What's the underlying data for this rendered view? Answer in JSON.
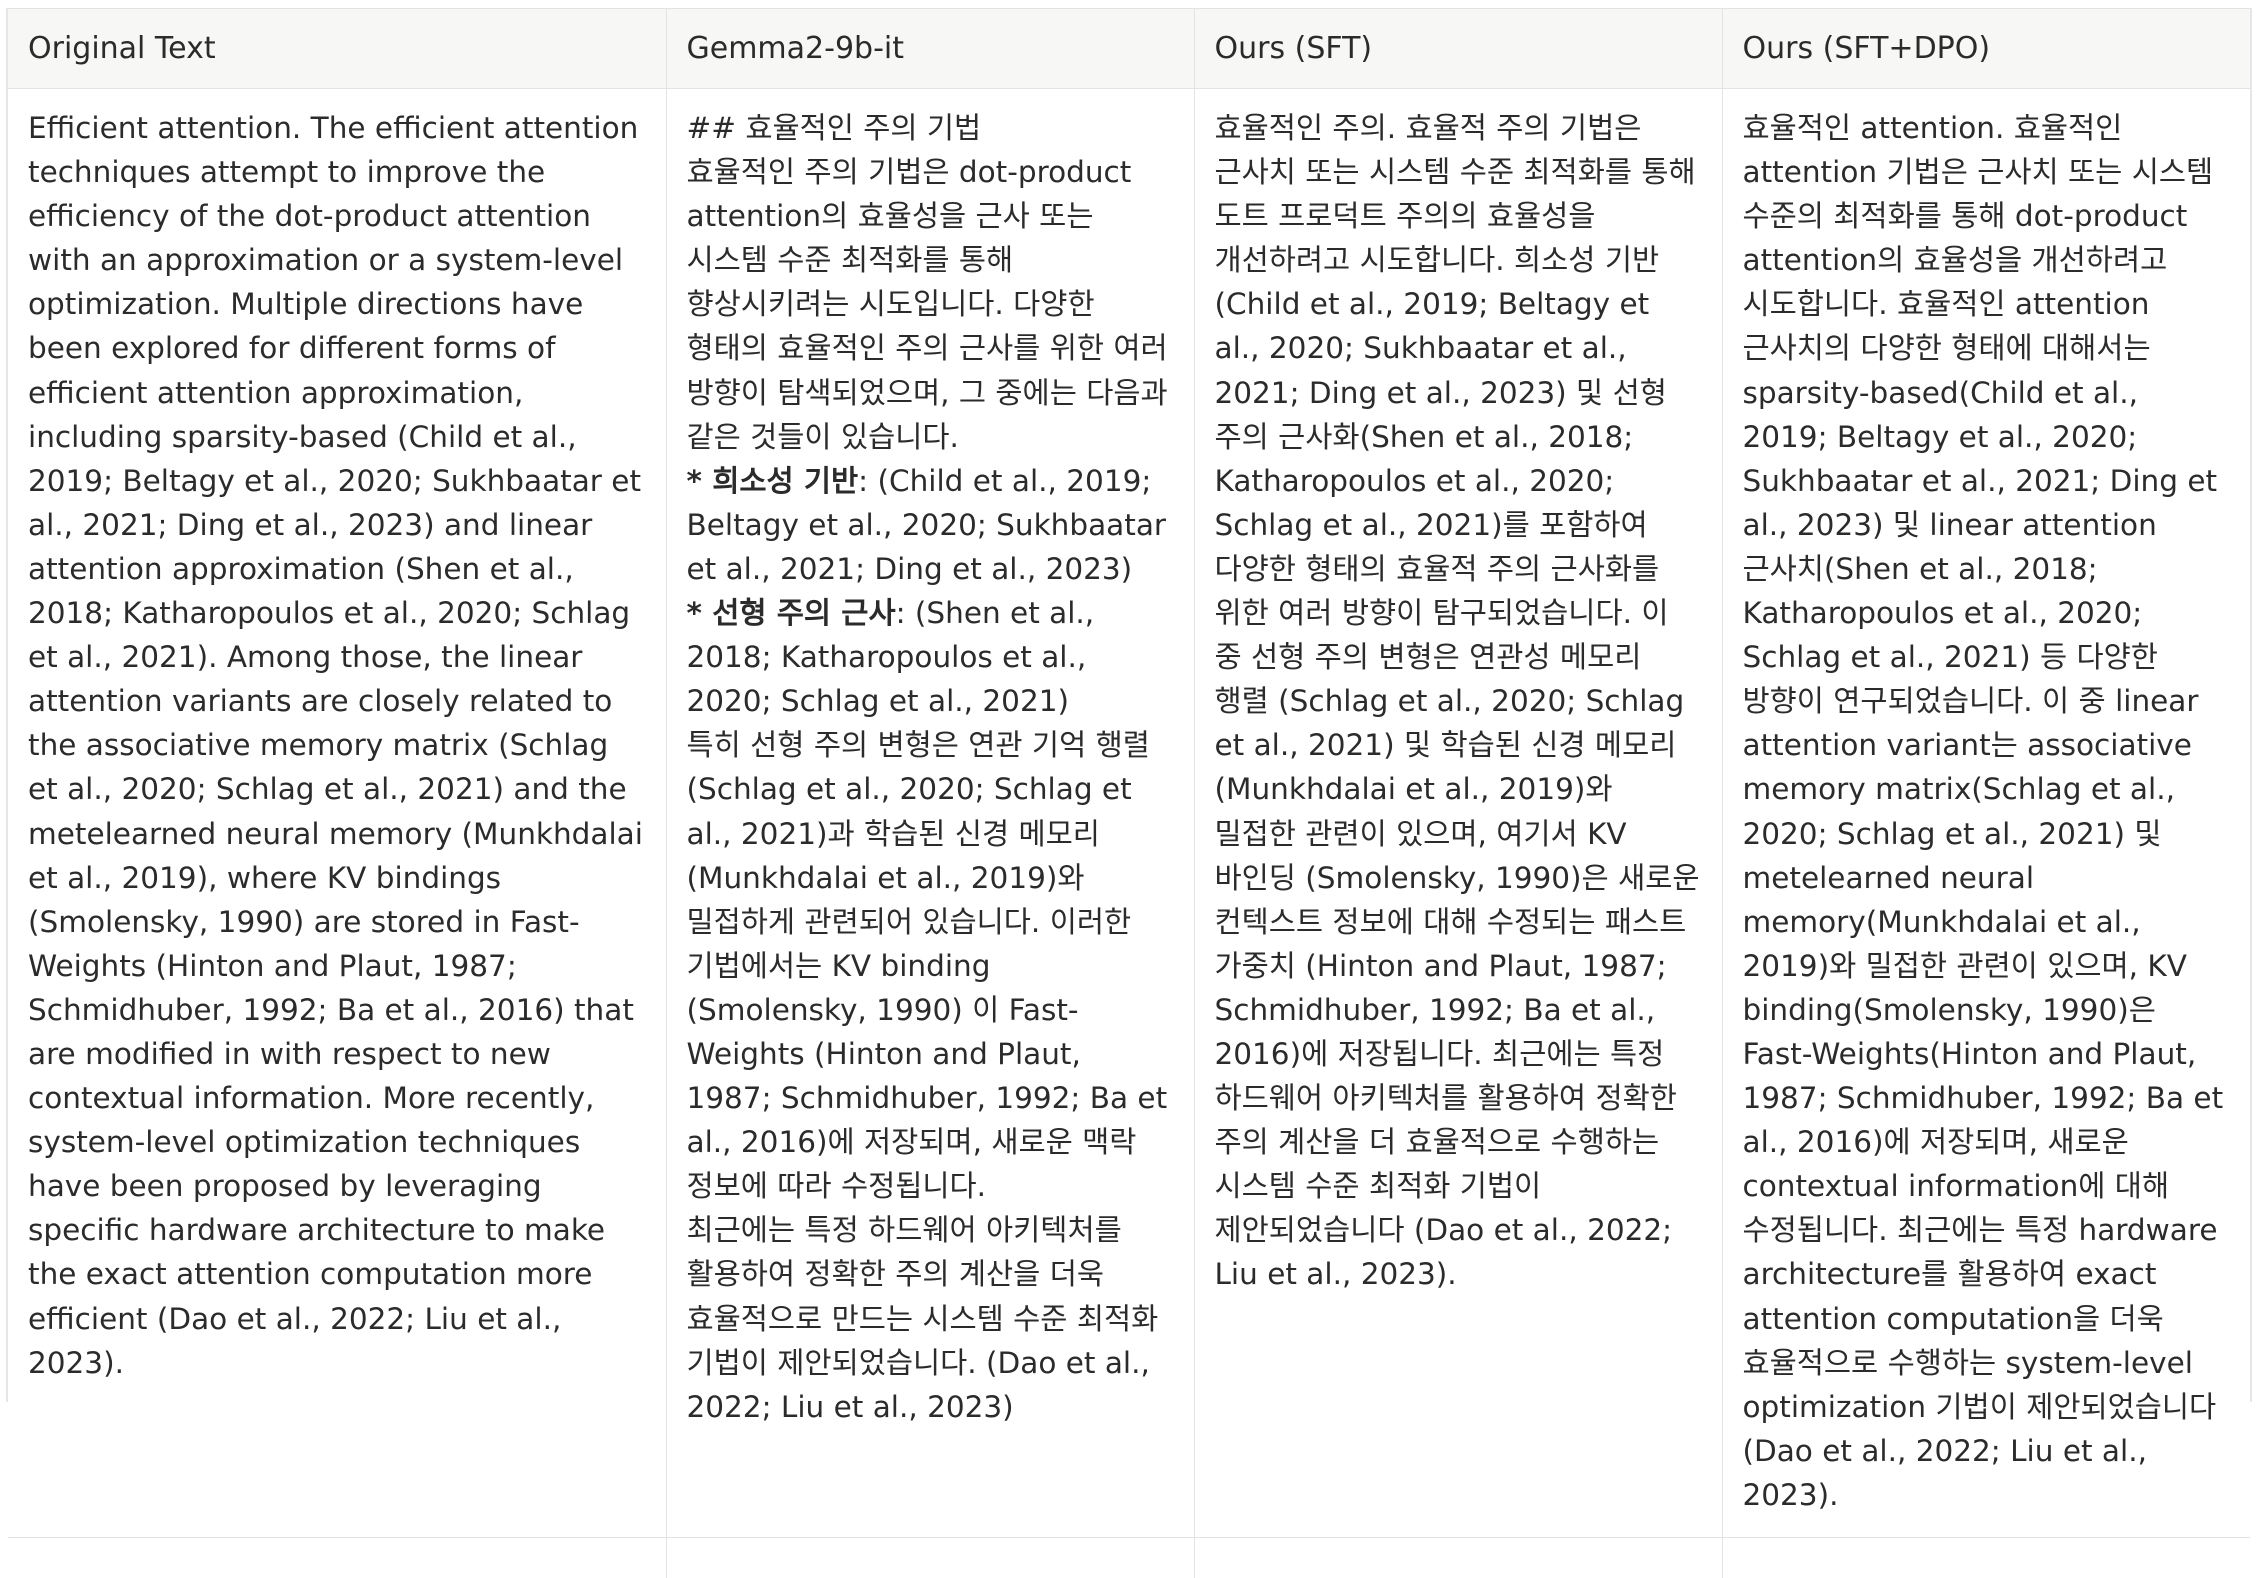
{
  "headers": [
    "Original Text",
    "Gemma2-9b-it",
    "Ours (SFT)",
    "Ours (SFT+DPO)"
  ],
  "original_text": "Efficient attention. The efficient attention techniques attempt to improve the efficiency of the dot-product attention with an approximation or a system-level optimization. Multiple directions have been explored for different forms of efficient attention approximation, including sparsity-based (Child et al., 2019; Beltagy et al., 2020; Sukhbaatar et al., 2021; Ding et al., 2023) and linear attention approximation (Shen et al., 2018; Katharopoulos et al., 2020; Schlag et al., 2021). Among those, the linear attention variants are closely related to the associative memory matrix (Schlag et al., 2020; Schlag et al., 2021) and the metelearned neural memory (Munkhdalai et al., 2019), where KV bindings (Smolensky, 1990) are stored in Fast-Weights (Hinton and Plaut, 1987; Schmidhuber, 1992; Ba et al., 2016) that are modified in with respect to new contextual information. More recently, system-level optimization techniques have been proposed by leveraging specific hardware architecture to make the exact attention computation more efficient (Dao et al., 2022; Liu et al., 2023).",
  "gemma": {
    "heading": "## 효율적인 주의 기법",
    "intro": "효율적인 주의 기법은 dot-product attention의 효율성을 근사 또는 시스템 수준 최적화를 통해 향상시키려는 시도입니다. 다양한 형태의 효율적인 주의 근사를 위한 여러 방향이 탐색되었으며, 그 중에는 다음과 같은 것들이 있습니다.",
    "bullet1_label": "* 희소성 기반",
    "bullet1_text": ": (Child et al., 2019; Beltagy et al., 2020; Sukhbaatar et al., 2021; Ding et al., 2023)",
    "bullet2_label": "* 선형 주의 근사",
    "bullet2_text": ": (Shen et al., 2018; Katharopoulos et al., 2020; Schlag et al., 2021)",
    "para2": "특히 선형 주의 변형은 연관 기억 행렬 (Schlag et al., 2020; Schlag et al., 2021)과 학습된 신경 메모리 (Munkhdalai et al., 2019)와 밀접하게 관련되어 있습니다. 이러한 기법에서는 KV binding (Smolensky, 1990) 이 Fast-Weights (Hinton and Plaut, 1987; Schmidhuber, 1992; Ba et al., 2016)에 저장되며, 새로운 맥락 정보에 따라 수정됩니다.",
    "para3": "최근에는 특정 하드웨어 아키텍처를 활용하여 정확한 주의 계산을 더욱 효율적으로 만드는 시스템 수준 최적화 기법이 제안되었습니다. (Dao et al., 2022; Liu et al., 2023)"
  },
  "sft": "효율적인 주의. 효율적 주의 기법은 근사치 또는 시스템 수준 최적화를 통해 도트 프로덕트 주의의 효율성을 개선하려고 시도합니다. 희소성 기반(Child et al., 2019; Beltagy et al., 2020; Sukhbaatar et al., 2021; Ding et al., 2023) 및 선형 주의 근사화(Shen et al., 2018; Katharopoulos et al., 2020; Schlag et al., 2021)를 포함하여 다양한 형태의 효율적 주의 근사화를 위한 여러 방향이 탐구되었습니다. 이 중 선형 주의 변형은 연관성 메모리 행렬 (Schlag et al., 2020; Schlag et al., 2021) 및 학습된 신경 메모리 (Munkhdalai et al., 2019)와 밀접한 관련이 있으며, 여기서 KV 바인딩 (Smolensky, 1990)은 새로운 컨텍스트 정보에 대해 수정되는 패스트 가중치 (Hinton and Plaut, 1987; Schmidhuber, 1992; Ba et al., 2016)에 저장됩니다. 최근에는 특정 하드웨어 아키텍처를 활용하여 정확한 주의 계산을 더 효율적으로 수행하는 시스템 수준 최적화 기법이 제안되었습니다 (Dao et al., 2022; Liu et al., 2023).",
  "sft_dpo": "효율적인 attention. 효율적인 attention 기법은 근사치 또는 시스템 수준의 최적화를 통해 dot-product attention의 효율성을 개선하려고 시도합니다. 효율적인 attention 근사치의 다양한 형태에 대해서는 sparsity-based(Child et al., 2019; Beltagy et al., 2020; Sukhbaatar et al., 2021; Ding et al., 2023) 및 linear attention 근사치(Shen et al., 2018; Katharopoulos et al., 2020; Schlag et al., 2021) 등 다양한 방향이 연구되었습니다. 이 중 linear attention variant는 associative memory matrix(Schlag et al., 2020; Schlag et al., 2021) 및 metelearned neural memory(Munkhdalai et al., 2019)와 밀접한 관련이 있으며, KV binding(Smolensky, 1990)은 Fast-Weights(Hinton and Plaut, 1987; Schmidhuber, 1992; Ba et al., 2016)에 저장되며, 새로운 contextual information에 대해 수정됩니다. 최근에는 특정 hardware architecture를 활용하여 exact attention computation을 더욱 효율적으로 수행하는 system-level optimization 기법이 제안되었습니다(Dao et al., 2022; Liu et al., 2023)."
}
